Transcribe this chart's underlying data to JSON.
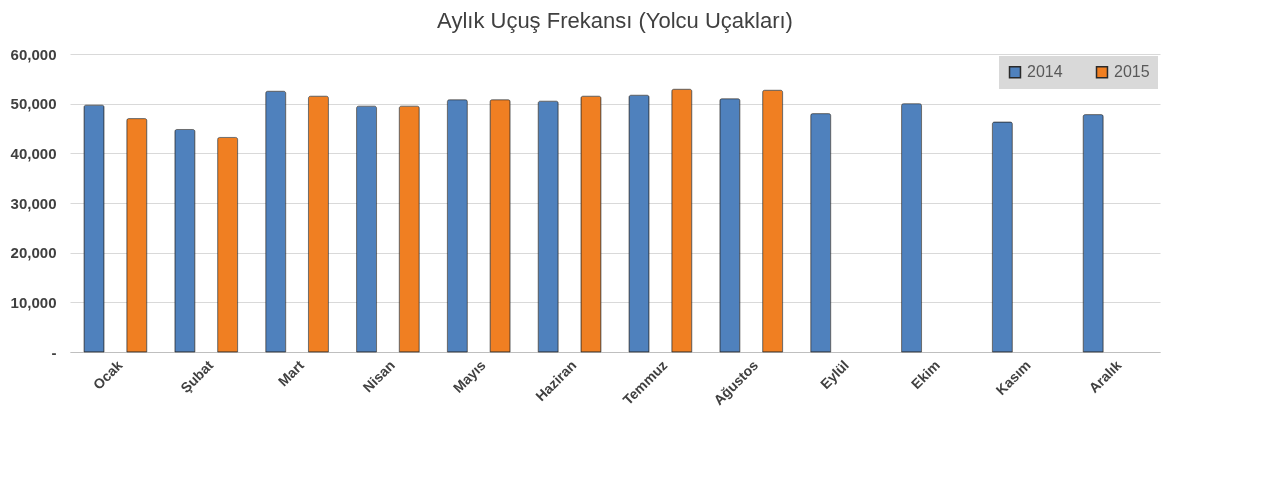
{
  "chart_data": {
    "type": "bar",
    "title": "Aylık Uçuş Frekansı (Yolcu Uçakları)",
    "categories": [
      "Ocak",
      "Şubat",
      "Mart",
      "Nisan",
      "Mayıs",
      "Haziran",
      "Temmuz",
      "Ağustos",
      "Eylül",
      "Ekim",
      "Kasım",
      "Aralık"
    ],
    "series": [
      {
        "name": "2014",
        "color": "#4f81bd",
        "values": [
          49700,
          44800,
          52500,
          49500,
          50800,
          50500,
          51700,
          51000,
          48000,
          50000,
          46300,
          47800
        ]
      },
      {
        "name": "2015",
        "color": "#f07f22",
        "values": [
          47000,
          43200,
          51500,
          49500,
          50800,
          51500,
          52900,
          52700,
          null,
          null,
          null,
          null
        ]
      }
    ],
    "ylim": [
      0,
      60000
    ],
    "yticks": [
      {
        "value": 0,
        "label": "-"
      },
      {
        "value": 10000,
        "label": "10,000"
      },
      {
        "value": 20000,
        "label": "20,000"
      },
      {
        "value": 30000,
        "label": "30,000"
      },
      {
        "value": 40000,
        "label": "40,000"
      },
      {
        "value": 50000,
        "label": "50,000"
      },
      {
        "value": 60000,
        "label": "60,000"
      }
    ],
    "grid": "y",
    "legend": "top right"
  }
}
